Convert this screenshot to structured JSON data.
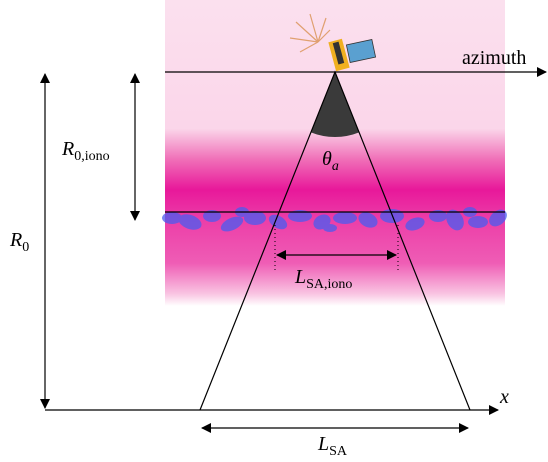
{
  "labels": {
    "azimuth": "azimuth",
    "r0_iono": {
      "symbol": "R",
      "subscript": "0,iono"
    },
    "theta": {
      "symbol": "θ",
      "subscript": "a"
    },
    "r0": {
      "symbol": "R",
      "subscript": "0"
    },
    "lsa_iono": {
      "symbol": "L",
      "subscript": "SA,iono"
    },
    "x_axis": "x",
    "lsa": {
      "symbol": "L",
      "subscript": "SA"
    }
  }
}
